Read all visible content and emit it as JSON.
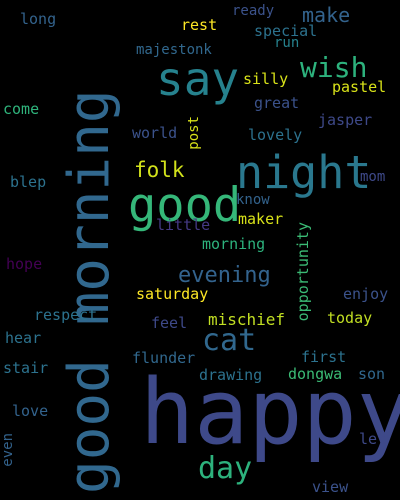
{
  "words": [
    {
      "text": "good morning",
      "color": "#31688e"
    },
    {
      "text": "happy",
      "color": "#3e4989"
    },
    {
      "text": "say",
      "color": "#26828e"
    },
    {
      "text": "good",
      "color": "#35b779"
    },
    {
      "text": "night",
      "color": "#2a788e"
    },
    {
      "text": "wish",
      "color": "#2db27d"
    },
    {
      "text": "make",
      "color": "#33638d"
    },
    {
      "text": "cat",
      "color": "#31688e"
    },
    {
      "text": "day",
      "color": "#2db27d"
    },
    {
      "text": "folk",
      "color": "#d2e21b"
    },
    {
      "text": "evening",
      "color": "#33638d"
    },
    {
      "text": "long",
      "color": "#33638d"
    },
    {
      "text": "ready",
      "color": "#3b528b"
    },
    {
      "text": "rest",
      "color": "#fde725"
    },
    {
      "text": "special",
      "color": "#2c728e"
    },
    {
      "text": "run",
      "color": "#26828e"
    },
    {
      "text": "majestonk",
      "color": "#31688e"
    },
    {
      "text": "silly",
      "color": "#d8e219"
    },
    {
      "text": "pastel",
      "color": "#d8e219"
    },
    {
      "text": "great",
      "color": "#3b528b"
    },
    {
      "text": "come",
      "color": "#2fb47c"
    },
    {
      "text": "jasper",
      "color": "#3e4989"
    },
    {
      "text": "world",
      "color": "#3b528b"
    },
    {
      "text": "post",
      "color": "#d8e219"
    },
    {
      "text": "lovely",
      "color": "#2c728e"
    },
    {
      "text": "mom",
      "color": "#3e4989"
    },
    {
      "text": "blep",
      "color": "#2c728e"
    },
    {
      "text": "know",
      "color": "#33638d"
    },
    {
      "text": "maker",
      "color": "#d8e219"
    },
    {
      "text": "little",
      "color": "#443983"
    },
    {
      "text": "morning",
      "color": "#2db27d"
    },
    {
      "text": "opportunity",
      "color": "#3bbb75"
    },
    {
      "text": "hope",
      "color": "#440154"
    },
    {
      "text": "enjoy",
      "color": "#3b528b"
    },
    {
      "text": "saturday",
      "color": "#fde725"
    },
    {
      "text": "respect",
      "color": "#2c728e"
    },
    {
      "text": "mischief",
      "color": "#c2df23"
    },
    {
      "text": "today",
      "color": "#c2df23"
    },
    {
      "text": "feel",
      "color": "#3e4989"
    },
    {
      "text": "hear",
      "color": "#2c728e"
    },
    {
      "text": "flunder",
      "color": "#31688e"
    },
    {
      "text": "first",
      "color": "#2c728e"
    },
    {
      "text": "stair",
      "color": "#2c728e"
    },
    {
      "text": "drawing",
      "color": "#2c728e"
    },
    {
      "text": "dongwa",
      "color": "#3bbb75"
    },
    {
      "text": "son",
      "color": "#31688e"
    },
    {
      "text": "love",
      "color": "#33638d"
    },
    {
      "text": "even",
      "color": "#33638d"
    },
    {
      "text": "let",
      "color": "#3e4989"
    },
    {
      "text": "view",
      "color": "#3b528b"
    }
  ]
}
